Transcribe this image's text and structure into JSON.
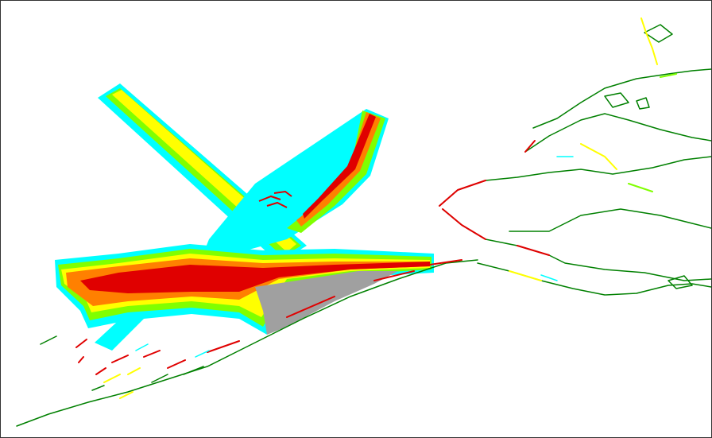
{
  "map": {
    "colors": {
      "background": "#ffffff",
      "frame": "#333333",
      "intensity_very_high": "#e00000",
      "intensity_high": "#ff8000",
      "intensity_medium": "#ffff00",
      "intensity_low": "#80ff00",
      "intensity_lowest": "#00ffff",
      "land_mask": "#a0a0a0",
      "coastline": "#008000"
    },
    "layers": [
      {
        "id": "fairway-northwest",
        "fill_order": [
          "cyan",
          "green",
          "yellow"
        ]
      },
      {
        "id": "fairway-northeast",
        "fill_order": [
          "cyan",
          "green",
          "orange",
          "red"
        ]
      },
      {
        "id": "fairway-main",
        "fill_order": [
          "cyan",
          "green",
          "yellow",
          "orange",
          "red"
        ]
      },
      {
        "id": "coastline-south",
        "stroke": "green"
      },
      {
        "id": "coastline-delta",
        "stroke": "green"
      }
    ]
  }
}
